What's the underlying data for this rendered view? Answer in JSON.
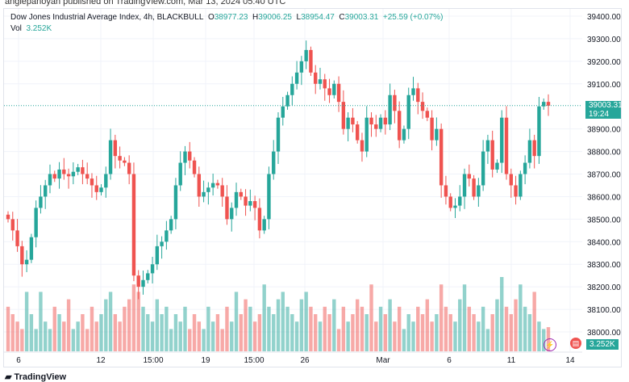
{
  "published": "anglepanoyan published on TradingView.com, Mar 13, 2024 05:40 UTC",
  "legend": {
    "symbol": "Dow Jones Industrial Average Index, 4h, BLACKBULL",
    "o_label": "O",
    "o": "38977.23",
    "h_label": "H",
    "h": "39006.25",
    "l_label": "L",
    "l": "38954.47",
    "c_label": "C",
    "c": "39003.31",
    "change": "+25.59 (+0.07%)",
    "vol_label": "Vol",
    "vol": "3.252K"
  },
  "price_tag": {
    "price": "39003.31",
    "countdown": "19:24"
  },
  "volume_tag": "3.252K",
  "logo": "TradingView",
  "colors": {
    "up": "#26a69a",
    "down": "#ef5350"
  },
  "y_ticks": [
    "39400.00",
    "39300.00",
    "39200.00",
    "39100.00",
    "38900.00",
    "38800.00",
    "38700.00",
    "38600.00",
    "38500.00",
    "38400.00",
    "38300.00",
    "38200.00",
    "38100.00",
    "38000.00"
  ],
  "x_ticks": [
    "6",
    "12",
    "15:00",
    "19",
    "15:00",
    "26",
    "Mar",
    "6",
    "11",
    "14"
  ],
  "chart_data": {
    "type": "candlestick",
    "ylim": [
      38000,
      39400
    ],
    "closes": [
      38500,
      38450,
      38380,
      38300,
      38320,
      38420,
      38550,
      38600,
      38650,
      38700,
      38680,
      38720,
      38700,
      38690,
      38710,
      38730,
      38700,
      38680,
      38650,
      38620,
      38640,
      38700,
      38850,
      38780,
      38760,
      38750,
      38700,
      38250,
      38200,
      38230,
      38260,
      38300,
      38380,
      38400,
      38450,
      38500,
      38650,
      38750,
      38800,
      38760,
      38700,
      38600,
      38620,
      38640,
      38660,
      38650,
      38600,
      38500,
      38550,
      38620,
      38600,
      38560,
      38580,
      38550,
      38450,
      38500,
      38700,
      38800,
      38950,
      39000,
      39050,
      39100,
      39150,
      39200,
      39250,
      39150,
      39100,
      39120,
      39080,
      39050,
      39100,
      39020,
      38900,
      38950,
      38920,
      38850,
      38800,
      38950,
      38920,
      38900,
      38950,
      38920,
      39050,
      38980,
      38850,
      38900,
      39050,
      39080,
      39020,
      38980,
      38950,
      38850,
      38900,
      38650,
      38600,
      38550,
      38560,
      38600,
      38700,
      38680,
      38600,
      38650,
      38800,
      38850,
      38720,
      38750,
      38950,
      38700,
      38650,
      38600,
      38700,
      38750,
      38850,
      38780,
      39000,
      39020,
      39003
    ],
    "volumes_k": [
      6,
      5,
      4,
      3,
      8,
      5,
      3,
      8,
      4,
      3,
      6,
      5,
      4,
      7,
      3,
      4,
      5,
      3,
      6,
      4,
      5,
      7,
      8,
      5,
      4,
      6,
      7,
      9,
      8,
      6,
      5,
      4,
      7,
      5,
      6,
      3,
      5,
      4,
      6,
      3,
      5,
      4,
      3,
      6,
      4,
      5,
      3,
      6,
      4,
      8,
      5,
      7,
      6,
      4,
      5,
      9,
      6,
      5,
      7,
      8,
      6,
      5,
      4,
      7,
      8,
      6,
      5,
      4,
      6,
      5,
      7,
      3,
      6,
      4,
      5,
      7,
      6,
      5,
      9,
      4,
      6,
      5,
      7,
      4,
      6,
      3,
      5,
      4,
      6,
      5,
      7,
      4,
      5,
      9,
      6,
      5,
      4,
      7,
      9,
      6,
      5,
      4,
      6,
      3,
      5,
      7,
      10,
      6,
      5,
      7,
      9,
      6,
      5,
      8,
      4,
      3,
      3.252
    ]
  }
}
